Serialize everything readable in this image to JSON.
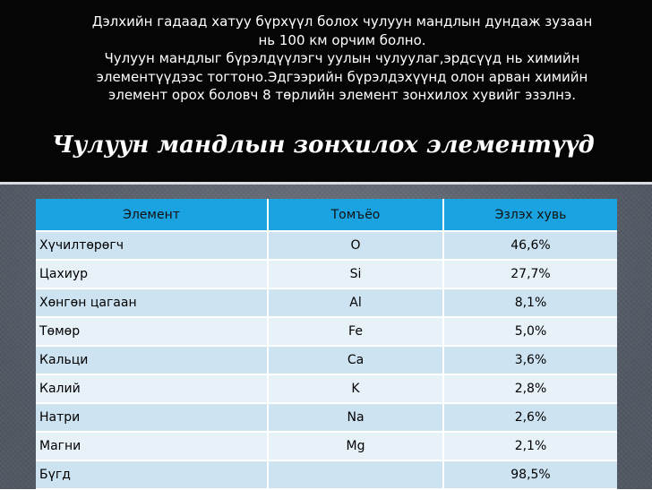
{
  "intro_lines": [
    "Дэлхийн гадаад хатуу бүрхүүл болох чулуун мандлын дундаж зузаан",
    "нь 100 км орчим болно.",
    "Чулуун мандлыг бүрэлдүүлэгч уулын чулуулаг,эрдсүүд нь химийн",
    "элементүүдээс тогтоно.Эдгээрийн бүрэлдэхүүнд олон арван химийн",
    "элемент орох боловч 8 төрлийн элемент зонхилох хувийг эзэлнэ."
  ],
  "heading": "Чулуун мандлын зонхилох элементүүд",
  "table": {
    "headers": [
      "Элемент",
      "Томъёо",
      "Эзлэх хувь"
    ],
    "rows": [
      {
        "element": "Хүчилтөрөгч",
        "symbol": "O",
        "percent": "46,6%"
      },
      {
        "element": "Цахиур",
        "symbol": "Si",
        "percent": "27,7%"
      },
      {
        "element": "Хөнгөн цагаан",
        "symbol": "Al",
        "percent": "8,1%"
      },
      {
        "element": "Төмөр",
        "symbol": "Fe",
        "percent": "5,0%"
      },
      {
        "element": "Кальци",
        "symbol": "Ca",
        "percent": "3,6%"
      },
      {
        "element": "Калий",
        "symbol": "K",
        "percent": "2,8%"
      },
      {
        "element": "Натри",
        "symbol": "Na",
        "percent": "2,6%"
      },
      {
        "element": "Магни",
        "symbol": "Mg",
        "percent": "2,1%"
      },
      {
        "element": "Бүгд",
        "symbol": "",
        "percent": "98,5%"
      }
    ]
  }
}
